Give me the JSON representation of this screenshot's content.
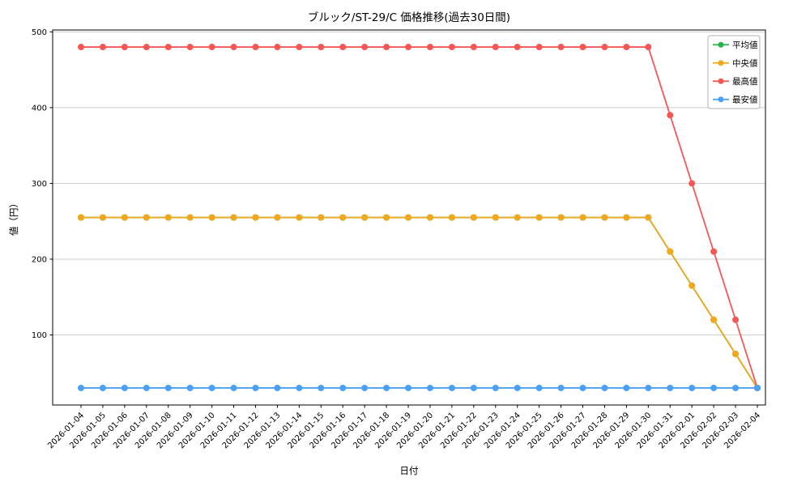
{
  "page": {
    "background": "#ffffff"
  },
  "chart_data": {
    "type": "line",
    "title": "ブルック/ST-29/C 価格推移(過去30日間)",
    "xlabel": "日付",
    "ylabel": "値（円）",
    "x": [
      "2026-01-04",
      "2026-01-05",
      "2026-01-06",
      "2026-01-07",
      "2026-01-08",
      "2026-01-09",
      "2026-01-10",
      "2026-01-11",
      "2026-01-12",
      "2026-01-13",
      "2026-01-14",
      "2026-01-15",
      "2026-01-16",
      "2026-01-17",
      "2026-01-18",
      "2026-01-19",
      "2026-01-20",
      "2026-01-21",
      "2026-01-22",
      "2026-01-23",
      "2026-01-24",
      "2026-01-25",
      "2026-01-26",
      "2026-01-27",
      "2026-01-28",
      "2026-01-29",
      "2026-01-30",
      "2026-01-31",
      "2026-02-01",
      "2026-02-02",
      "2026-02-03",
      "2026-02-04"
    ],
    "series": [
      {
        "key": "mean",
        "name": "平均値",
        "color": "#2bb24a",
        "values": [
          255,
          255,
          255,
          255,
          255,
          255,
          255,
          255,
          255,
          255,
          255,
          255,
          255,
          255,
          255,
          255,
          255,
          255,
          255,
          255,
          255,
          255,
          255,
          255,
          255,
          255,
          255,
          210,
          165,
          120,
          75,
          30
        ]
      },
      {
        "key": "median",
        "name": "中央値",
        "color": "#f2a71c",
        "values": [
          255,
          255,
          255,
          255,
          255,
          255,
          255,
          255,
          255,
          255,
          255,
          255,
          255,
          255,
          255,
          255,
          255,
          255,
          255,
          255,
          255,
          255,
          255,
          255,
          255,
          255,
          255,
          210,
          165,
          120,
          75,
          30
        ]
      },
      {
        "key": "max",
        "name": "最高値",
        "color": "#f75754",
        "values": [
          480,
          480,
          480,
          480,
          480,
          480,
          480,
          480,
          480,
          480,
          480,
          480,
          480,
          480,
          480,
          480,
          480,
          480,
          480,
          480,
          480,
          480,
          480,
          480,
          480,
          480,
          480,
          390,
          300,
          210,
          120,
          30
        ]
      },
      {
        "key": "min",
        "name": "最安値",
        "color": "#4aa0f5",
        "values": [
          30,
          30,
          30,
          30,
          30,
          30,
          30,
          30,
          30,
          30,
          30,
          30,
          30,
          30,
          30,
          30,
          30,
          30,
          30,
          30,
          30,
          30,
          30,
          30,
          30,
          30,
          30,
          30,
          30,
          30,
          30,
          30
        ]
      }
    ],
    "yticks": [
      100,
      200,
      300,
      400,
      500
    ],
    "ylim": [
      7.5,
      502.5
    ],
    "grid": true,
    "grid_color": "#cccccc",
    "legend_position": "upper right"
  }
}
